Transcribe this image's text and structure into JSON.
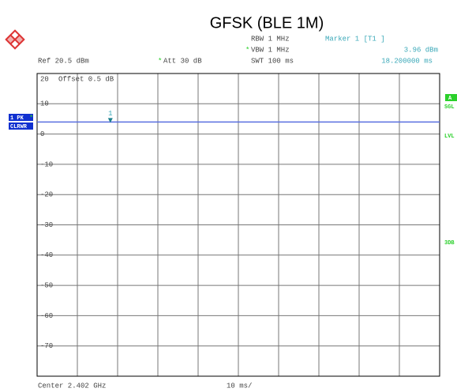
{
  "chart_data": {
    "type": "line",
    "title": "GFSK (BLE 1M)",
    "header": {
      "rbw": "RBW 1 MHz",
      "vbw": "VBW 1 MHz",
      "swt": "SWT 100 ms",
      "ref": "Ref 20.5 dBm",
      "att": "Att 30 dB",
      "offset": "Offset 0.5 dB",
      "star": "*"
    },
    "footer": {
      "center": "Center 2.402 GHz",
      "span": "10 ms/"
    },
    "left_badges": [
      "1 PK",
      "CLRWR"
    ],
    "right_badges": [
      "A",
      "SGL",
      "LVL",
      "3DB"
    ],
    "marker": {
      "title": "Marker 1 [T1 ]",
      "level": "3.96 dBm",
      "time": "18.200000 ms",
      "number": "1",
      "x": 18.2,
      "y": 3.96
    },
    "x": [
      0,
      100
    ],
    "series": [
      {
        "name": "1 PK",
        "color": "#5a6fe0",
        "values": [
          3.96,
          3.96
        ]
      }
    ],
    "xlim": [
      0,
      100
    ],
    "ylim": [
      -80,
      20
    ],
    "yticks": [
      20,
      10,
      0,
      -10,
      -20,
      -30,
      -40,
      -50,
      -60,
      -70
    ],
    "grid": true
  }
}
